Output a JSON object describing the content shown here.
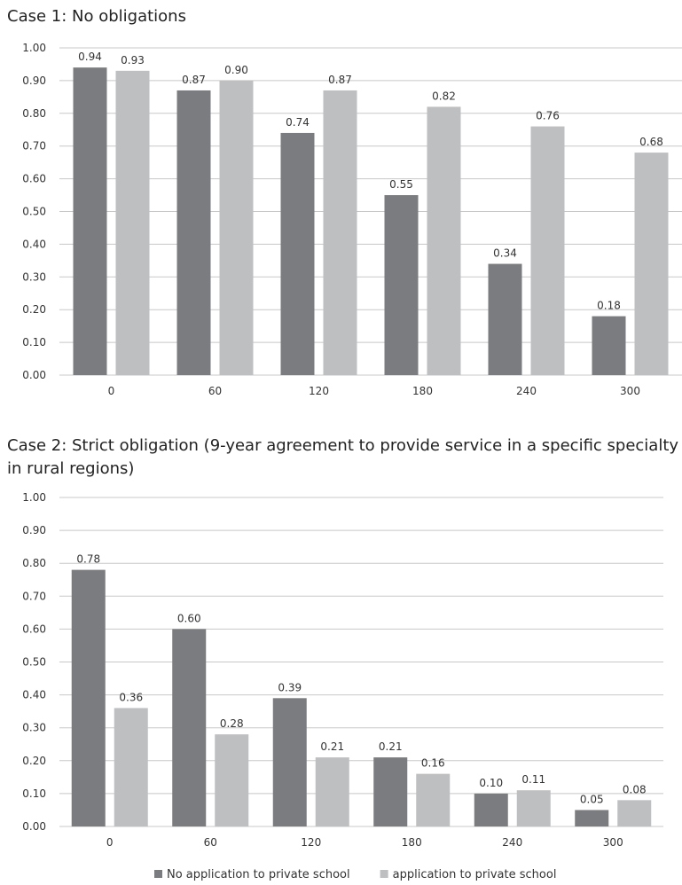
{
  "chart_data": [
    {
      "type": "bar",
      "title": "Case 1: No obligations",
      "categories": [
        "0",
        "60",
        "120",
        "180",
        "240",
        "300"
      ],
      "series": [
        {
          "name": "No application to private school",
          "color": "#7b7c7f",
          "values": [
            0.94,
            0.87,
            0.74,
            0.55,
            0.34,
            0.18
          ]
        },
        {
          "name": "application to private school",
          "color": "#bebfc1",
          "values": [
            0.93,
            0.9,
            0.87,
            0.82,
            0.76,
            0.68
          ]
        }
      ],
      "ylim": [
        0,
        1
      ],
      "yticks": [
        "0.00",
        "0.10",
        "0.20",
        "0.30",
        "0.40",
        "0.50",
        "0.60",
        "0.70",
        "0.80",
        "0.90",
        "1.00"
      ],
      "grid": true,
      "legend": "bottom"
    },
    {
      "type": "bar",
      "title": "Case 2: Strict obligation (9-year agreement to provide service in a specific specialty in rural regions)",
      "categories": [
        "0",
        "60",
        "120",
        "180",
        "240",
        "300"
      ],
      "series": [
        {
          "name": "No application to private school",
          "color": "#7b7c7f",
          "values": [
            0.78,
            0.6,
            0.39,
            0.21,
            0.1,
            0.05
          ]
        },
        {
          "name": "application to private school",
          "color": "#bebfc1",
          "values": [
            0.36,
            0.28,
            0.21,
            0.16,
            0.11,
            0.08
          ]
        }
      ],
      "ylim": [
        0,
        1
      ],
      "yticks": [
        "0.00",
        "0.10",
        "0.20",
        "0.30",
        "0.40",
        "0.50",
        "0.60",
        "0.70",
        "0.80",
        "0.90",
        "1.00"
      ],
      "grid": true,
      "legend": "bottom"
    }
  ]
}
